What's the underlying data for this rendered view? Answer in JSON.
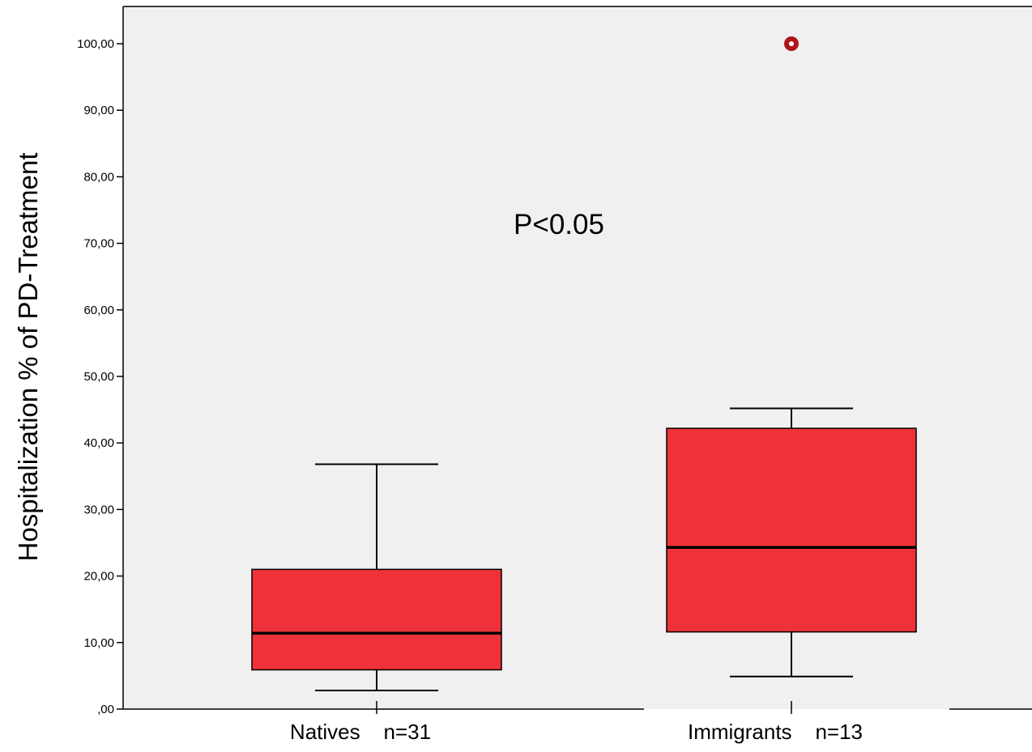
{
  "chart_data": {
    "type": "box",
    "ylabel": "Hospitalization % of PD-Treatment",
    "ylim": [
      0,
      105
    ],
    "yticks": [
      0,
      10,
      20,
      30,
      40,
      50,
      60,
      70,
      80,
      90,
      100
    ],
    "ytick_labels": [
      ",00",
      "10,00",
      "20,00",
      "30,00",
      "40,00",
      "50,00",
      "60,00",
      "70,00",
      "80,00",
      "90,00",
      "100,00"
    ],
    "annotation": "P<0.05",
    "grid": false,
    "box_color": "#ef3239",
    "plot_background": "#f0f0f0",
    "outlier_color": "#b0151b",
    "categories": [
      {
        "label": "Natives    n=31",
        "min": 2.8,
        "q1": 5.9,
        "median": 11.4,
        "q3": 21.0,
        "max": 36.8,
        "outliers": []
      },
      {
        "label": "Immigrants    n=13",
        "min": 4.9,
        "q1": 11.6,
        "median": 24.3,
        "q3": 42.2,
        "max": 45.2,
        "outliers": [
          100
        ]
      }
    ]
  }
}
